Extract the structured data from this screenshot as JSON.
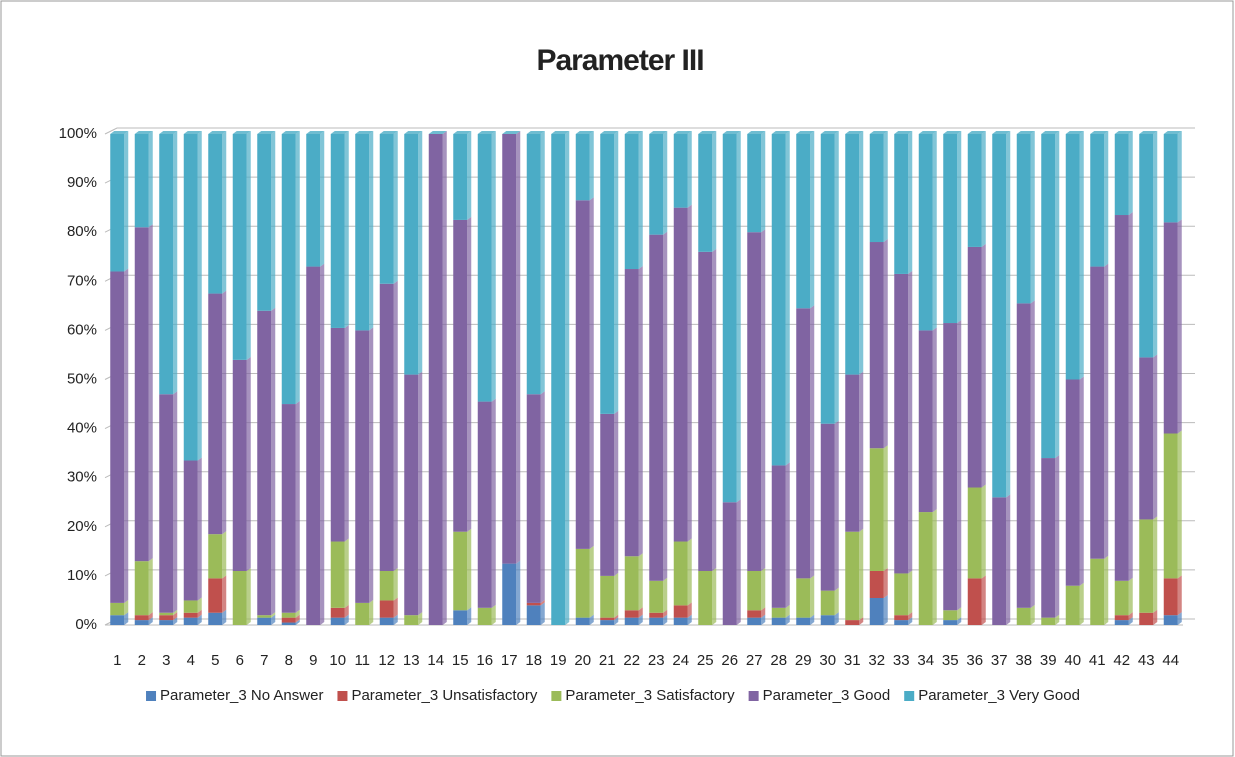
{
  "chart_data": {
    "type": "stacked_bar",
    "title": "Parameter III",
    "categories": [
      "1",
      "2",
      "3",
      "4",
      "5",
      "6",
      "7",
      "8",
      "9",
      "10",
      "11",
      "12",
      "13",
      "14",
      "15",
      "16",
      "17",
      "18",
      "19",
      "20",
      "21",
      "22",
      "23",
      "24",
      "25",
      "26",
      "27",
      "28",
      "29",
      "30",
      "31",
      "32",
      "33",
      "34",
      "35",
      "36",
      "37",
      "38",
      "39",
      "40",
      "41",
      "42",
      "43",
      "44"
    ],
    "series": [
      {
        "name": "Parameter_3 No Answer",
        "color": "#4f81bd",
        "values": [
          2,
          1,
          1,
          1.5,
          2.5,
          0,
          1.5,
          0.5,
          0,
          1.5,
          0,
          1.5,
          0,
          0,
          3,
          0,
          12.5,
          4,
          0,
          1.5,
          1,
          1.5,
          1.5,
          1.5,
          0,
          0,
          1.5,
          1.5,
          1.5,
          2,
          0,
          5.5,
          1,
          0,
          1,
          0,
          0,
          0,
          0,
          0,
          0,
          1,
          0,
          2
        ]
      },
      {
        "name": "Parameter_3 Unsatisfactory",
        "color": "#c0504d",
        "values": [
          0,
          1,
          1,
          1,
          7,
          0,
          0,
          1,
          0,
          2,
          0,
          3.5,
          0,
          0,
          0,
          0,
          0,
          0.5,
          0,
          0,
          0.5,
          1.5,
          1,
          2.5,
          0,
          0,
          1.5,
          0,
          0,
          0,
          1,
          5.5,
          1,
          0,
          0,
          9.5,
          0,
          0,
          0,
          0,
          0,
          1,
          2.5,
          7.5
        ]
      },
      {
        "name": "Parameter_3 Satisfactory",
        "color": "#9bbb59",
        "values": [
          2.5,
          11,
          0.5,
          2.5,
          9,
          11,
          0.5,
          1,
          0,
          13.5,
          4.5,
          6,
          2,
          0,
          16,
          3.5,
          0,
          0,
          0,
          14,
          8.5,
          11,
          6.5,
          13,
          11,
          0,
          8,
          2,
          8,
          5,
          18,
          25,
          8.5,
          23,
          2,
          18.5,
          0,
          3.5,
          1.5,
          8,
          13.5,
          7,
          19,
          29.5
        ]
      },
      {
        "name": "Parameter_3 Good",
        "color": "#8064a2",
        "values": [
          67.5,
          68,
          44.5,
          28.5,
          49,
          43,
          62,
          42.5,
          73,
          43.5,
          55.5,
          58.5,
          49,
          100,
          63.5,
          42,
          87.5,
          42.5,
          0,
          71,
          33,
          58.5,
          70.5,
          68,
          65,
          25,
          69,
          29,
          55,
          34,
          32,
          42,
          61,
          37,
          58.5,
          49,
          26,
          62,
          32.5,
          42,
          59.5,
          74.5,
          33,
          43
        ]
      },
      {
        "name": "Parameter_3 Very Good",
        "color": "#4bacc6",
        "values": [
          28,
          19,
          53,
          66.5,
          32.5,
          46,
          36,
          55,
          27,
          39.5,
          40,
          30.5,
          49,
          0,
          17.5,
          54.5,
          0,
          53,
          100,
          13.5,
          57,
          27.5,
          20.5,
          15,
          24,
          75,
          20,
          67.5,
          35.5,
          59,
          49,
          22,
          28.5,
          40,
          38.5,
          23,
          74,
          34.5,
          66,
          50,
          27,
          16.5,
          45.5,
          18
        ]
      }
    ],
    "ylim": [
      0,
      100
    ],
    "yticks": [
      {
        "value": 0,
        "label": "0%"
      },
      {
        "value": 10,
        "label": "10%"
      },
      {
        "value": 20,
        "label": "20%"
      },
      {
        "value": 30,
        "label": "30%"
      },
      {
        "value": 40,
        "label": "40%"
      },
      {
        "value": 50,
        "label": "50%"
      },
      {
        "value": 60,
        "label": "60%"
      },
      {
        "value": 70,
        "label": "70%"
      },
      {
        "value": 80,
        "label": "80%"
      },
      {
        "value": 90,
        "label": "90%"
      },
      {
        "value": 100,
        "label": "100%"
      }
    ],
    "grid": true,
    "legend": "bottom"
  }
}
